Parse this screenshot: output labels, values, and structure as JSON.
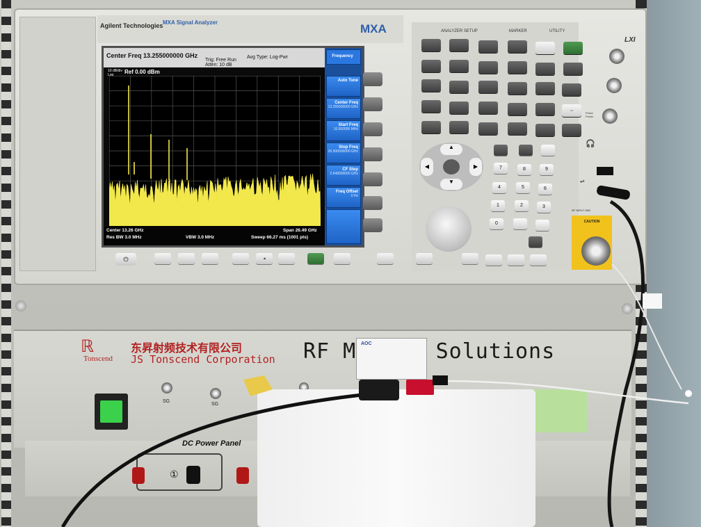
{
  "instrument": {
    "brand": "Agilent Technologies",
    "model_name": "MXA Signal Analyzer",
    "model_short": "MXA",
    "lxi": "LXI"
  },
  "screen": {
    "center_freq_header": "Center Freq 13.255000000 GHz",
    "trig": "Trig: Free Run",
    "atten": "Atten: 10 dB",
    "avg_type": "Avg Type: Log-Pwr",
    "ref_level": "Ref 0.00 dBm",
    "scale": "10 dB/div",
    "scale_log": "Log",
    "footer_center": "Center 13.26 GHz",
    "footer_res_bw": "Res BW 3.0 MHz",
    "footer_vbw": "VBW 3.0 MHz",
    "footer_span": "Span 26.49 GHz",
    "footer_sweep": "Sweep  66.27 ms (1001 pts)"
  },
  "softkeys": {
    "menu_title": "Frequency",
    "items": [
      {
        "label": "Auto Tune",
        "value": ""
      },
      {
        "label": "Center Freq",
        "value": "13.255000000 GHz"
      },
      {
        "label": "Start Freq",
        "value": "10.000000 MHz"
      },
      {
        "label": "Stop Freq",
        "value": "26.500000000 GHz"
      },
      {
        "label": "CF Step",
        "value": "2.649000000 GHz"
      },
      {
        "label": "Freq Offset",
        "value": "0 Hz"
      }
    ]
  },
  "panel": {
    "sections": [
      "ANALYZER SETUP",
      "MARKER",
      "UTILITY"
    ],
    "probe_power": "Probe Power",
    "rf_input": "RF INPUT 50Ω",
    "caution": "CAUTION"
  },
  "lower_unit": {
    "company_cn": "东昇射频技术有限公司",
    "company_en": "JS Tonscend Corporation",
    "brand_small": "Tonscend",
    "slogan": "RF M        ment Solutions",
    "port_sg1": "SG",
    "port_sg2": "SG",
    "dc_panel": "DC Power Panel",
    "circle_one": "①",
    "card_brand": "AOC"
  },
  "colors": {
    "trace": "#f2e84b",
    "softkey_blue": "#2a77e0",
    "caution_yellow": "#f1c21c"
  },
  "icons": [
    "power-icon",
    "lxi-logo-icon",
    "usb-icon",
    "headphone-icon",
    "print-icon",
    "speaker-icon"
  ]
}
